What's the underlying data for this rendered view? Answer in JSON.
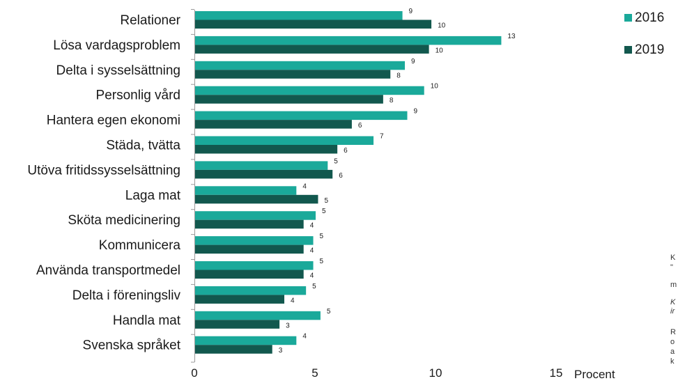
{
  "chart_data": {
    "type": "bar",
    "orientation": "horizontal",
    "categories": [
      "Relationer",
      "Lösa vardagsproblem",
      "Delta i sysselsättning",
      "Personlig vård",
      "Hantera egen ekonomi",
      "Städa, tvätta",
      "Utöva fritidssysselsättning",
      "Laga mat",
      "Sköta medicinering",
      "Kommunicera",
      "Använda transportmedel",
      "Delta i föreningsliv",
      "Handla mat",
      "Svenska språket"
    ],
    "series": [
      {
        "name": "2016",
        "color": "#1aa99a",
        "values": [
          8.6,
          12.7,
          8.7,
          9.5,
          8.8,
          7.4,
          5.5,
          4.2,
          5.0,
          4.9,
          4.9,
          4.6,
          5.2,
          4.2
        ],
        "labels": [
          "9",
          "13",
          "9",
          "10",
          "9",
          "7",
          "5",
          "4",
          "5",
          "5",
          "5",
          "5",
          "5",
          "4"
        ]
      },
      {
        "name": "2019",
        "color": "#12584e",
        "values": [
          9.8,
          9.7,
          8.1,
          7.8,
          6.5,
          5.9,
          5.7,
          5.1,
          4.5,
          4.5,
          4.5,
          3.7,
          3.5,
          3.2
        ],
        "labels": [
          "10",
          "10",
          "8",
          "8",
          "6",
          "6",
          "6",
          "5",
          "4",
          "4",
          "4",
          "4",
          "3",
          "3"
        ]
      }
    ],
    "x_ticks": [
      "0",
      "5",
      "10",
      "15"
    ],
    "xlim": [
      0,
      15
    ],
    "xlabel": "Procent",
    "ylabel": "",
    "title": "",
    "grid": false,
    "legend_position": "top-right"
  },
  "notes": [
    "K",
    "\"",
    "m",
    "K",
    "ir",
    "R",
    "o",
    "a",
    "k"
  ]
}
